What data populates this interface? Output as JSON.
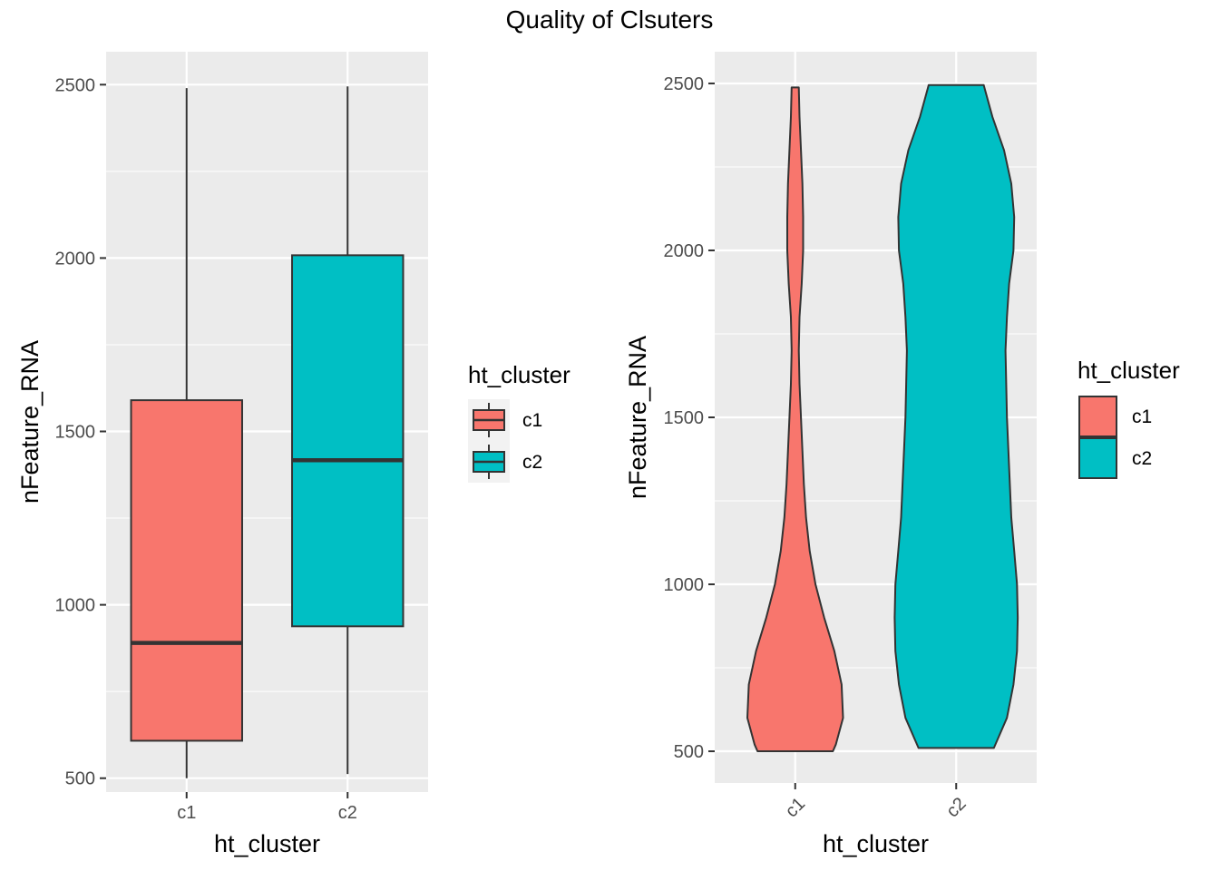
{
  "page_title": "Quality of Clsuters",
  "chart_data": [
    {
      "type": "box",
      "xlabel": "ht_cluster",
      "ylabel": "nFeature_RNA",
      "categories": [
        "c1",
        "c2"
      ],
      "ylim": [
        460,
        2595
      ],
      "yticks": [
        500,
        1000,
        1500,
        2000,
        2500
      ],
      "boxes": [
        {
          "category": "c1",
          "min": 500,
          "q1": 608,
          "median": 890,
          "q3": 1590,
          "max": 2490,
          "color": "#F8766D"
        },
        {
          "category": "c2",
          "min": 512,
          "q1": 938,
          "median": 1417,
          "q3": 2008,
          "max": 2495,
          "color": "#00BFC4"
        }
      ],
      "grid": true,
      "legend": {
        "title": "ht_cluster",
        "position": "right",
        "items": [
          "c1",
          "c2"
        ]
      }
    },
    {
      "type": "violin",
      "xlabel": "ht_cluster",
      "ylabel": "nFeature_RNA",
      "categories": [
        "c1",
        "c2"
      ],
      "ylim": [
        405,
        2595
      ],
      "yticks": [
        500,
        1000,
        1500,
        2000,
        2500
      ],
      "xtick_rotation": 45,
      "violins": [
        {
          "category": "c1",
          "color": "#F8766D",
          "y": [
            500,
            520,
            600,
            700,
            800,
            900,
            1000,
            1100,
            1200,
            1300,
            1400,
            1500,
            1600,
            1700,
            1800,
            1900,
            2000,
            2100,
            2200,
            2300,
            2400,
            2488
          ],
          "halfwidth": [
            0.52,
            0.56,
            0.66,
            0.64,
            0.54,
            0.4,
            0.28,
            0.2,
            0.15,
            0.12,
            0.1,
            0.08,
            0.06,
            0.05,
            0.06,
            0.09,
            0.11,
            0.11,
            0.1,
            0.08,
            0.06,
            0.05
          ]
        },
        {
          "category": "c2",
          "color": "#00BFC4",
          "y": [
            510,
            530,
            600,
            700,
            800,
            900,
            1000,
            1100,
            1200,
            1300,
            1400,
            1500,
            1600,
            1700,
            1800,
            1900,
            2000,
            2100,
            2200,
            2300,
            2400,
            2495
          ],
          "halfwidth": [
            0.52,
            0.56,
            0.7,
            0.79,
            0.84,
            0.85,
            0.84,
            0.8,
            0.76,
            0.74,
            0.72,
            0.7,
            0.69,
            0.68,
            0.7,
            0.73,
            0.79,
            0.8,
            0.76,
            0.66,
            0.5,
            0.38
          ]
        }
      ],
      "grid": true,
      "legend": {
        "title": "ht_cluster",
        "position": "right",
        "items": [
          "c1",
          "c2"
        ]
      }
    }
  ]
}
